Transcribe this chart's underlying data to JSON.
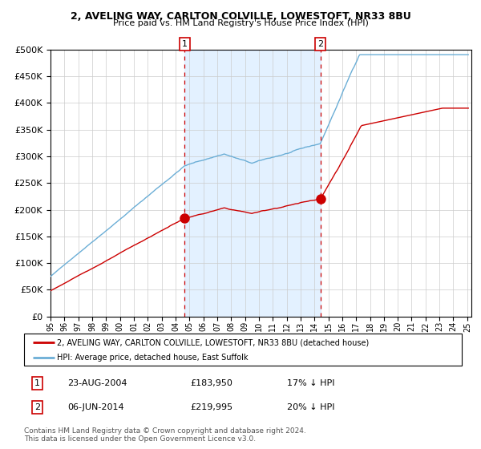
{
  "title1": "2, AVELING WAY, CARLTON COLVILLE, LOWESTOFT, NR33 8BU",
  "title2": "Price paid vs. HM Land Registry's House Price Index (HPI)",
  "legend_line1": "2, AVELING WAY, CARLTON COLVILLE, LOWESTOFT, NR33 8BU (detached house)",
  "legend_line2": "HPI: Average price, detached house, East Suffolk",
  "transaction1_date": "23-AUG-2004",
  "transaction1_price": 183950,
  "transaction1_label": "17% ↓ HPI",
  "transaction2_date": "06-JUN-2014",
  "transaction2_price": 219995,
  "transaction2_label": "20% ↓ HPI",
  "footnote1": "Contains HM Land Registry data © Crown copyright and database right 2024.",
  "footnote2": "This data is licensed under the Open Government Licence v3.0.",
  "hpi_color": "#6baed6",
  "price_color": "#cc0000",
  "bg_shaded_color": "#ddeeff",
  "vline_color": "#cc0000",
  "grid_color": "#cccccc",
  "ylim": [
    0,
    500000
  ],
  "x_start_year": 1995,
  "x_end_year": 2025,
  "transaction1_x": 2004.65,
  "transaction2_x": 2014.43
}
